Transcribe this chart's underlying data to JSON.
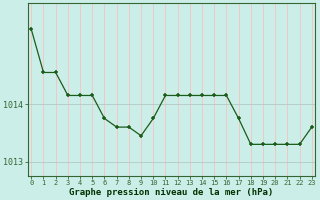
{
  "x": [
    0,
    1,
    2,
    3,
    4,
    5,
    6,
    7,
    8,
    9,
    10,
    11,
    12,
    13,
    14,
    15,
    16,
    17,
    18,
    19,
    20,
    21,
    22,
    23
  ],
  "y": [
    1015.3,
    1014.55,
    1014.55,
    1014.15,
    1014.15,
    1014.15,
    1013.75,
    1013.6,
    1013.6,
    1013.45,
    1013.75,
    1014.15,
    1014.15,
    1014.15,
    1014.15,
    1014.15,
    1014.15,
    1013.75,
    1013.3,
    1013.3,
    1013.3,
    1013.3,
    1013.3,
    1013.6
  ],
  "ylim": [
    1012.75,
    1015.75
  ],
  "yticks": [
    1013,
    1014
  ],
  "xlabel": "Graphe pression niveau de la mer (hPa)",
  "line_color": "#1a5c1a",
  "marker": "+",
  "bg_color": "#cceee8",
  "vgrid_color": "#f0c8c8",
  "hgrid_color": "#b8ccc8",
  "axis_color": "#336633",
  "label_color": "#1a4d1a",
  "xlabel_color": "#003300",
  "figsize": [
    3.2,
    2.0
  ],
  "dpi": 100
}
